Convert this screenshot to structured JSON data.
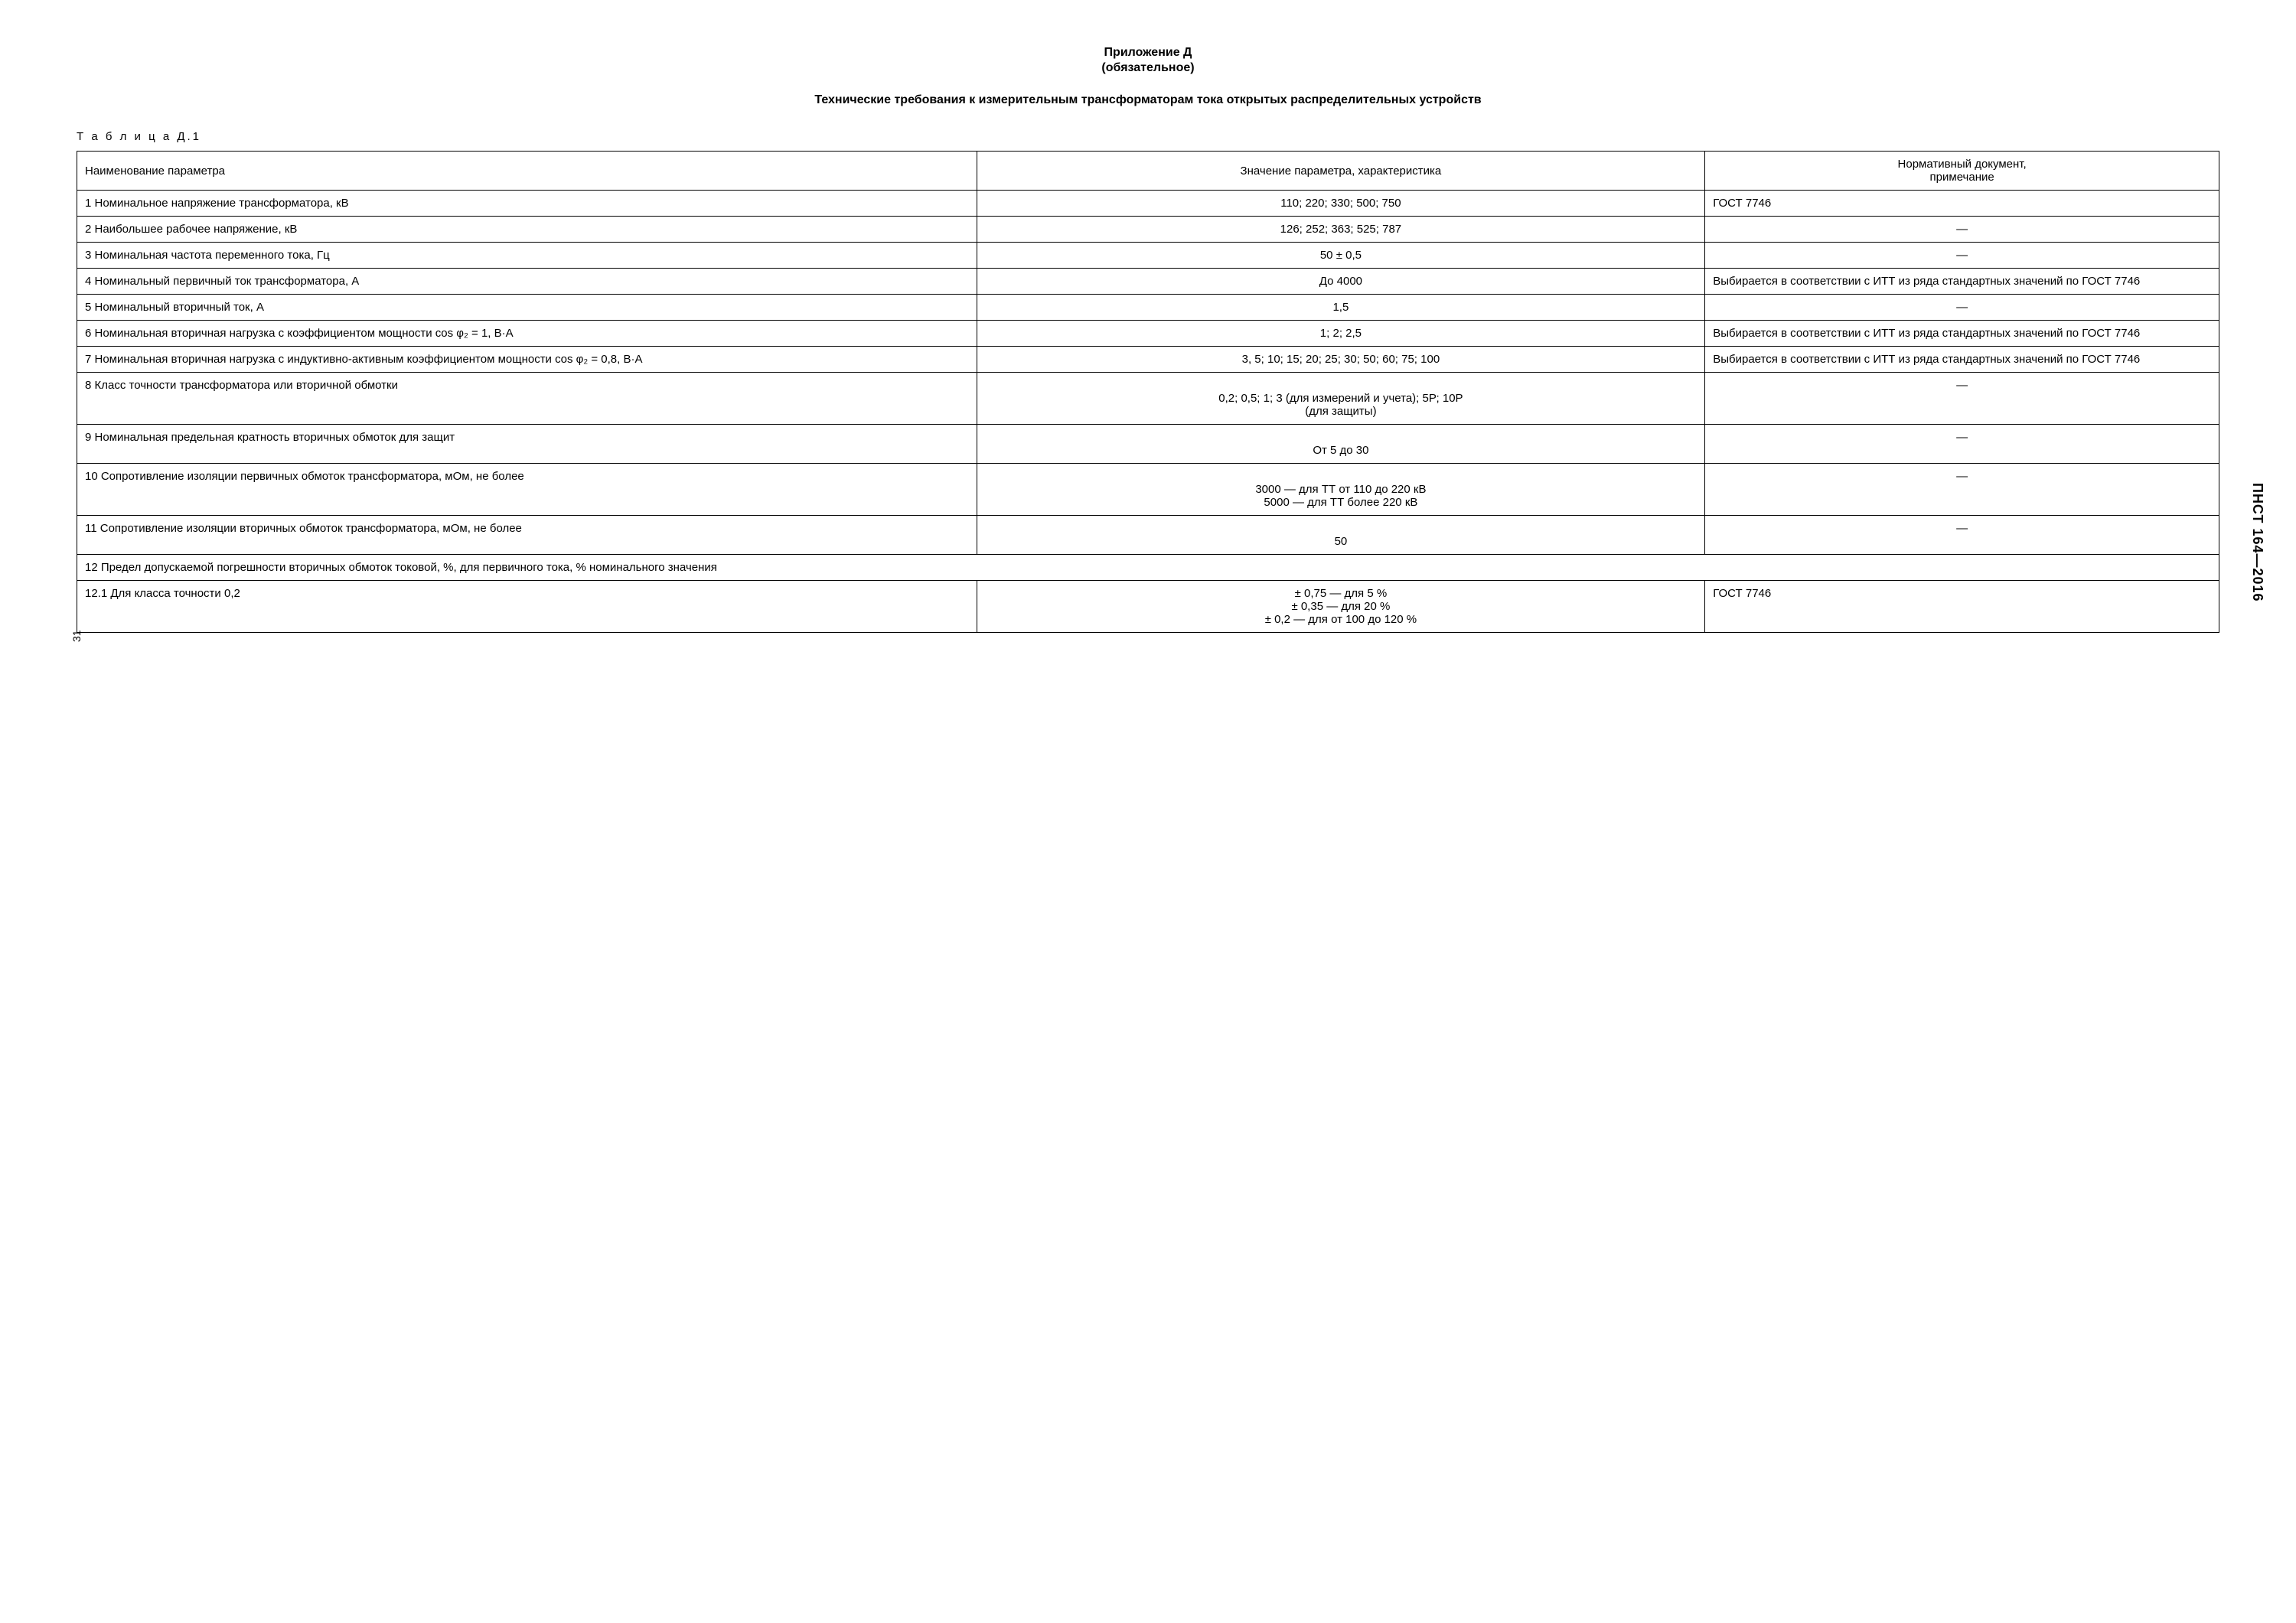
{
  "header": {
    "appendix": "Приложение Д",
    "mandatory": "(обязательное)",
    "title": "Технические требования к измерительным трансформаторам тока открытых распределительных устройств"
  },
  "tableCaption": "Т а б л и ц а  Д.1",
  "columns": {
    "c1": "Наименование параметра",
    "c2": "Значение параметра, характеристика",
    "c3": "Нормативный документ,\nпримечание"
  },
  "rows": {
    "r1": {
      "name": "1 Номинальное напряжение трансформатора, кВ",
      "value": "110; 220; 330; 500; 750",
      "note": "ГОСТ 7746"
    },
    "r2": {
      "name": "2 Наибольшее рабочее напряжение, кВ",
      "value": "126; 252; 363; 525; 787",
      "note": "—"
    },
    "r3": {
      "name": "3 Номинальная частота переменного тока, Гц",
      "value": "50 ± 0,5",
      "note": "—"
    },
    "r4": {
      "name": "4 Номинальный первичный ток трансформатора, А",
      "value": "До 4000",
      "note": "Выбирается в соответствии с ИТТ из ряда стандартных значений по ГОСТ 7746"
    },
    "r5": {
      "name": "5 Номинальный вторичный ток, А",
      "value": "1,5",
      "note": "—"
    },
    "r6": {
      "name": "6 Номинальная вторичная нагрузка с коэффициентом мощности cos φ₂ = 1, В·А",
      "value": "1; 2; 2,5",
      "note": "Выбирается в соответствии с ИТТ из ряда стандартных значений по ГОСТ 7746"
    },
    "r7": {
      "name": "7 Номинальная вторичная нагрузка с индуктивно-активным коэффициентом мощности cos φ₂ = 0,8, В·А",
      "value": "3, 5; 10; 15; 20; 25; 30; 50; 60; 75; 100",
      "note": "Выбирается в соответствии с ИТТ из ряда стандартных значений по ГОСТ 7746"
    },
    "r8": {
      "name": "8 Класс точности трансформатора или вторичной обмотки",
      "value": "\n0,2; 0,5; 1; 3 (для измерений и учета); 5Р; 10Р\n(для защиты)",
      "note": "—"
    },
    "r9": {
      "name": "9 Номинальная предельная кратность вторичных обмоток для защит",
      "value": "\nОт 5 до 30",
      "note": "—"
    },
    "r10": {
      "name": "10 Сопротивление изоляции первичных обмоток трансформатора, мОм, не более",
      "value": "\n3000 — для ТТ от 110 до 220 кВ\n5000 — для ТТ более 220 кВ",
      "note": "—"
    },
    "r11": {
      "name": "11 Сопротивление изоляции вторичных обмоток трансформатора, мОм, не более",
      "value": "\n50",
      "note": "—"
    },
    "r12": {
      "name": "12 Предел допускаемой погрешности вторичных обмоток токовой, %, для первичного тока, % номинального значения"
    },
    "r12_1": {
      "name": "12.1 Для класса точности 0,2",
      "value": "± 0,75 — для 5 %\n± 0,35 — для 20 %\n± 0,2 — для от 100 до 120 %",
      "note": "ГОСТ 7746"
    }
  },
  "pageNumber": "31",
  "docCode": "ПНСТ 164—2016"
}
